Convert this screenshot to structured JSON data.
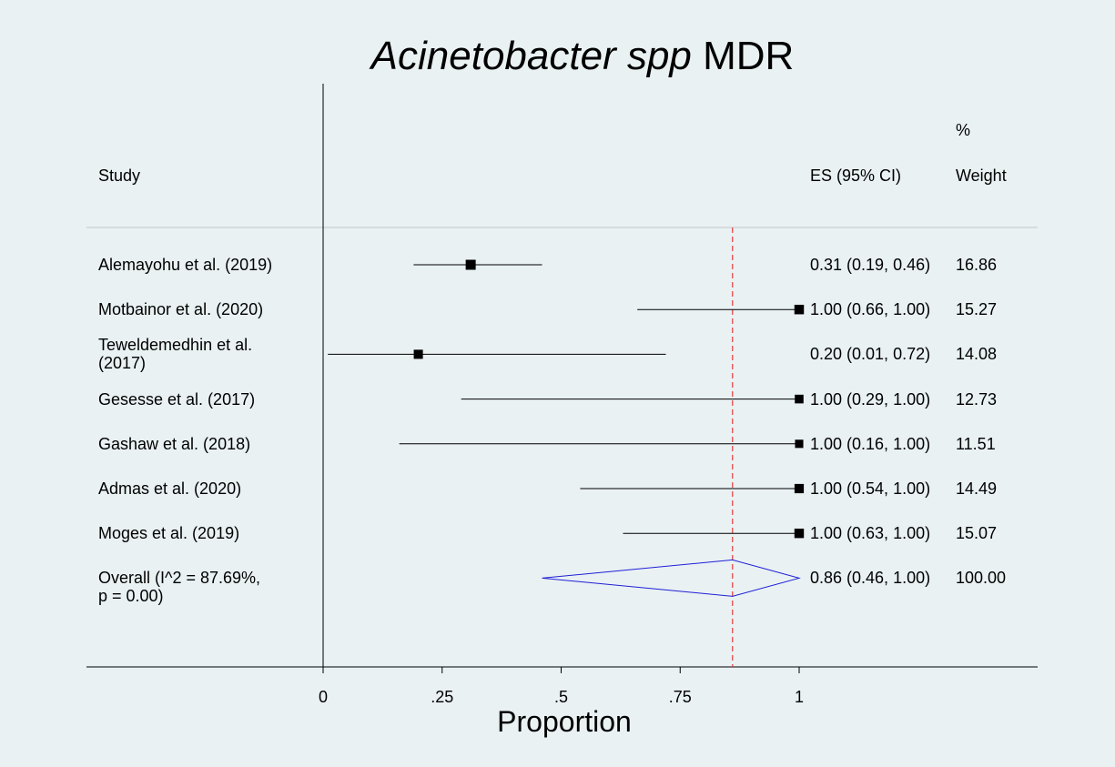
{
  "chart_data": {
    "type": "forest",
    "title_species": "Acinetobacter spp",
    "title_suffix": "MDR",
    "study_header": "Study",
    "es_header": "ES (95% CI)",
    "weight_header": [
      "%",
      "Weight"
    ],
    "xlabel": "Proportion",
    "categories": [
      "Alemayohu et al. (2019)",
      "Motbainor et al. (2020)",
      "Teweldemedhin et al.\n(2017)",
      "Gesesse et al. (2017)",
      "Gashaw et al. (2018)",
      "Admas et al. (2020)",
      "Moges et al. (2019)"
    ],
    "values": [
      0.31,
      1.0,
      0.2,
      1.0,
      1.0,
      1.0,
      1.0
    ],
    "ci_low": [
      0.19,
      0.66,
      0.01,
      0.29,
      0.16,
      0.54,
      0.63
    ],
    "ci_high": [
      0.46,
      1.0,
      0.72,
      1.0,
      1.0,
      1.0,
      1.0
    ],
    "value_labels": [
      "0.31 (0.19, 0.46)",
      "1.00 (0.66, 1.00)",
      "0.20 (0.01, 0.72)",
      "1.00 (0.29, 1.00)",
      "1.00 (0.16, 1.00)",
      "1.00 (0.54, 1.00)",
      "1.00 (0.63, 1.00)"
    ],
    "weights": [
      16.86,
      15.27,
      14.08,
      12.73,
      11.51,
      14.49,
      15.07
    ],
    "overall": {
      "name": "Overall  (I^2 = 87.69%,\np = 0.00)",
      "value": 0.86,
      "ci_low": 0.46,
      "ci_high": 1.0,
      "value_label": "0.86 (0.46, 1.00)",
      "weight": {
        "value": 100,
        "label": "100.00"
      }
    },
    "xlim": [
      0,
      1
    ],
    "xticks": [
      0,
      {
        "value": 0.25,
        "label": ".25"
      },
      {
        "value": 0.5,
        "label": ".5"
      },
      {
        "value": 0.75,
        "label": ".75"
      },
      1
    ],
    "marker_color": "#000000",
    "overall_color": "#1f1fd6",
    "reference_color": "#e8393c"
  }
}
